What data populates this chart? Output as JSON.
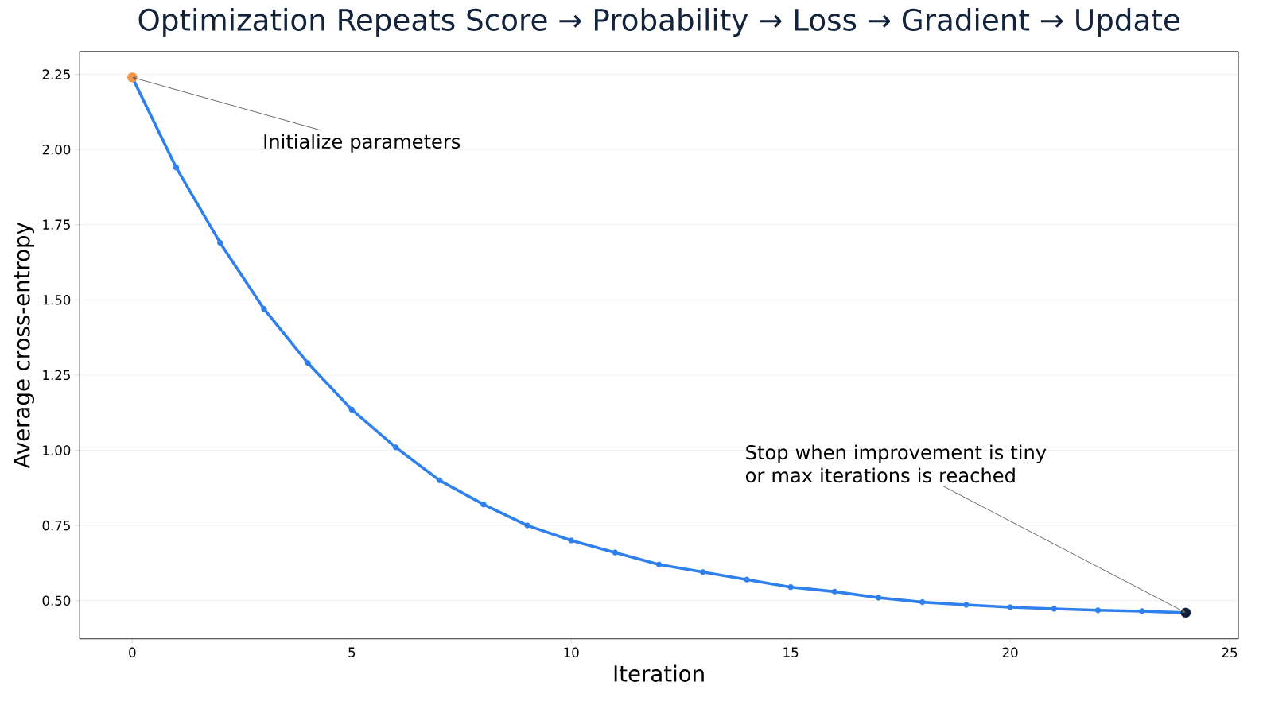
{
  "chart_data": {
    "type": "line",
    "title": "Optimization Repeats Score → Probability → Loss → Gradient → Update",
    "xlabel": "Iteration",
    "ylabel": "Average cross-entropy",
    "x": [
      0,
      1,
      2,
      3,
      4,
      5,
      6,
      7,
      8,
      9,
      10,
      11,
      12,
      13,
      14,
      15,
      16,
      17,
      18,
      19,
      20,
      21,
      22,
      23,
      24
    ],
    "series": [
      {
        "color": "#2f80ed",
        "marker": "circle",
        "values": [
          2.24,
          1.94,
          1.69,
          1.47,
          1.29,
          1.135,
          1.01,
          0.9,
          0.82,
          0.75,
          0.7,
          0.66,
          0.62,
          0.595,
          0.57,
          0.545,
          0.53,
          0.51,
          0.495,
          0.486,
          0.478,
          0.473,
          0.468,
          0.465,
          0.46
        ]
      },
      {
        "type": "scatter",
        "color": "#f0964a",
        "marker": "circle",
        "x": [
          0
        ],
        "values": [
          2.24
        ]
      },
      {
        "type": "scatter",
        "color": "#0f1f3a",
        "marker": "circle",
        "x": [
          24
        ],
        "values": [
          0.46
        ]
      }
    ],
    "xlim": [
      -1.2,
      25.2
    ],
    "ylim": [
      0.373,
      2.326
    ],
    "xticks": [
      0,
      5,
      10,
      15,
      20,
      25
    ],
    "yticks": [
      {
        "value": 0.5,
        "label": "0.50"
      },
      {
        "value": 0.75,
        "label": "0.75"
      },
      {
        "value": 1.0,
        "label": "1.00"
      },
      {
        "value": 1.25,
        "label": "1.25"
      },
      {
        "value": 1.5,
        "label": "1.50"
      },
      {
        "value": 1.75,
        "label": "1.75"
      },
      {
        "value": 2.0,
        "label": "2.00"
      },
      {
        "value": 2.25,
        "label": "2.25"
      }
    ],
    "grid": "y",
    "annotations": [
      {
        "text": "Initialize parameters",
        "x": 0,
        "y": 2.24
      },
      {
        "text": "Stop when improvement is tiny\nor max iterations is reached",
        "x": 24,
        "y": 0.46
      }
    ]
  }
}
